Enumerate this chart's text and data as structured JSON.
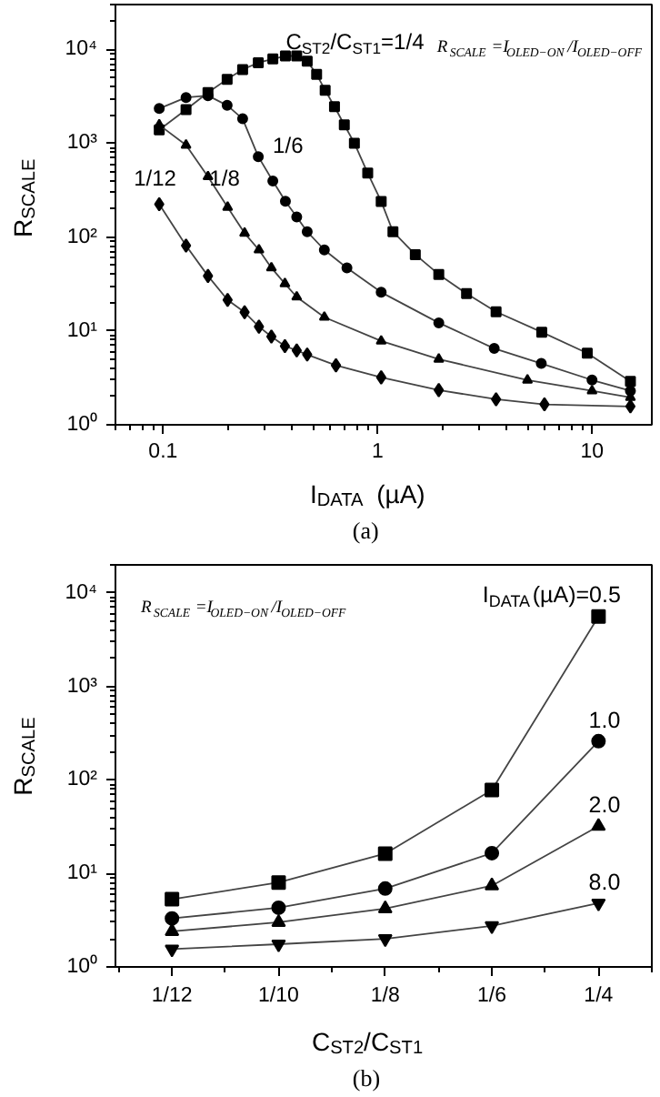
{
  "chart_data": [
    {
      "type": "line",
      "xlabel": "I$_{DATA}$ (µA)",
      "ylabel": "R$_{SCALE}$",
      "log": "xy",
      "grid": false,
      "xlim": [
        0.06,
        19
      ],
      "ylim": [
        1,
        30000
      ],
      "xticks": [
        0.1,
        1,
        10
      ],
      "yticks": [
        {
          "value": 1,
          "label": "10⁰"
        },
        {
          "value": 10,
          "label": "10¹"
        },
        {
          "value": 100,
          "label": "10²"
        },
        {
          "value": 1000,
          "label": "10³"
        },
        {
          "value": 10000,
          "label": "10⁴"
        }
      ],
      "annotations": [
        "R$_{SCALE}$=I$_{OLED−ON}$/I$_{OLED−OFF}$",
        "(a)"
      ],
      "series": [
        {
          "name": "C$_{ST2}$/C$_{ST1}$=1/4",
          "color": "#000000",
          "marker": "square",
          "x": [
            0.096,
            0.128,
            0.162,
            0.199,
            0.235,
            0.278,
            0.325,
            0.372,
            0.42,
            0.47,
            0.52,
            0.57,
            0.63,
            0.7,
            0.78,
            0.9,
            1.04,
            1.18,
            1.5,
            1.93,
            2.6,
            3.57,
            5.83,
            9.5,
            15.1
          ],
          "values": [
            1390,
            2280,
            3460,
            4800,
            6100,
            7200,
            7900,
            8500,
            8500,
            7500,
            5400,
            3670,
            2450,
            1570,
            1000,
            480,
            240,
            114,
            65,
            40,
            25,
            16,
            9.7,
            5.8,
            2.9
          ]
        },
        {
          "name": "1/6",
          "color": "#000000",
          "marker": "circle",
          "x": [
            0.096,
            0.128,
            0.162,
            0.199,
            0.235,
            0.278,
            0.325,
            0.372,
            0.42,
            0.47,
            0.565,
            0.72,
            1.04,
            1.93,
            3.5,
            5.8,
            10,
            15.1
          ],
          "values": [
            2340,
            3070,
            3210,
            2530,
            1820,
            720,
            396,
            241,
            164,
            114,
            73,
            47,
            25.8,
            12.2,
            6.5,
            4.5,
            3.0,
            2.3
          ]
        },
        {
          "name": "1/8",
          "color": "#000000",
          "marker": "triangle",
          "x": [
            0.096,
            0.128,
            0.162,
            0.2,
            0.24,
            0.28,
            0.32,
            0.37,
            0.42,
            0.565,
            1.04,
            1.93,
            5,
            10,
            15.1
          ],
          "values": [
            1565,
            955,
            440,
            208,
            110,
            73,
            47,
            31.9,
            23,
            14,
            7.8,
            5.0,
            3.0,
            2.3,
            1.96
          ]
        },
        {
          "name": "1/12",
          "color": "#000000",
          "marker": "diamond",
          "x": [
            0.096,
            0.128,
            0.162,
            0.2,
            0.24,
            0.28,
            0.32,
            0.37,
            0.42,
            0.47,
            0.64,
            1.04,
            1.93,
            3.57,
            6,
            15.1
          ],
          "values": [
            224,
            81,
            38.5,
            21.4,
            15.8,
            11.1,
            8.7,
            6.9,
            6.2,
            5.6,
            4.3,
            3.2,
            2.34,
            1.87,
            1.65,
            1.57
          ]
        }
      ]
    },
    {
      "type": "line",
      "xlabel": "C$_{ST2}$/C$_{ST1}$",
      "ylabel": "R$_{SCALE}$",
      "log": "y",
      "grid": false,
      "categories": [
        "1/12",
        "1/10",
        "1/8",
        "1/6",
        "1/4"
      ],
      "ylim": [
        1,
        20000
      ],
      "yticks": [
        {
          "value": 1,
          "label": "10⁰"
        },
        {
          "value": 10,
          "label": "10¹"
        },
        {
          "value": 100,
          "label": "10²"
        },
        {
          "value": 1000,
          "label": "10³"
        },
        {
          "value": 10000,
          "label": "10⁴"
        }
      ],
      "annotations": [
        "R$_{SCALE}$=I$_{OLED−ON}$/I$_{OLED−OFF}$",
        "(b)"
      ],
      "series": [
        {
          "name": "I$_{DATA}$(µA)=0.5",
          "color": "#000000",
          "marker": "square",
          "values": [
            5.3,
            8.0,
            16.3,
            78,
            5600
          ]
        },
        {
          "name": "1.0",
          "color": "#000000",
          "marker": "circle",
          "values": [
            3.3,
            4.3,
            6.9,
            16.5,
            260
          ]
        },
        {
          "name": "2.0",
          "color": "#000000",
          "marker": "triangle",
          "values": [
            2.4,
            3.0,
            4.2,
            7.4,
            32
          ]
        },
        {
          "name": "8.0",
          "color": "#000000",
          "marker": "triangle",
          "values": [
            1.55,
            1.75,
            2.0,
            2.75,
            4.8
          ]
        }
      ]
    }
  ]
}
